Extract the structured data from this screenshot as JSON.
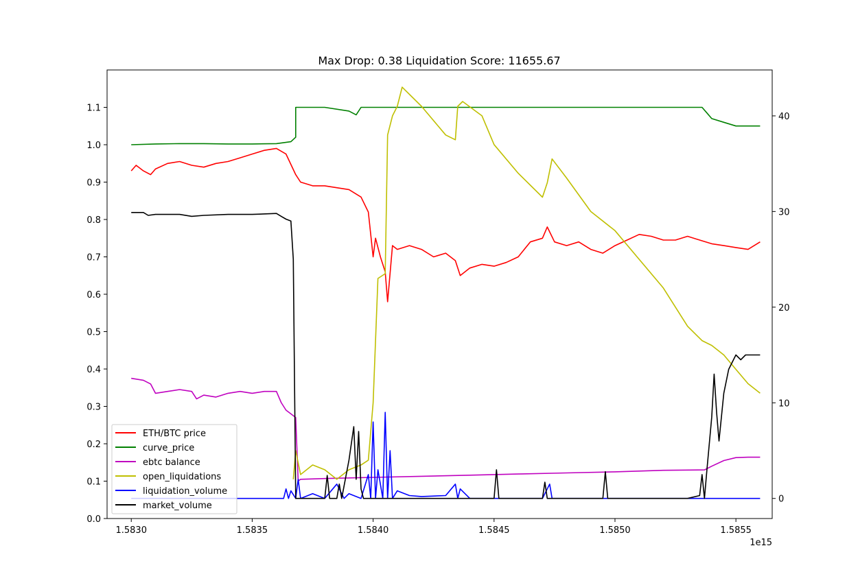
{
  "chart_data": {
    "type": "line",
    "title": "Max Drop: 0.38 Liquidation Score: 11655.67",
    "xlabel": "",
    "ylabel_left": "",
    "ylabel_right": "",
    "x_offset_label": "1e15",
    "xlim": [
      1.5829,
      1.58565
    ],
    "ylim_left": [
      0.0,
      1.2
    ],
    "ylim_right": [
      -2.1,
      44.8
    ],
    "x_ticks": [
      1.583,
      1.5835,
      1.584,
      1.5845,
      1.585,
      1.5855
    ],
    "x_tick_labels": [
      "1.5830",
      "1.5835",
      "1.5840",
      "1.5845",
      "1.5850",
      "1.5855"
    ],
    "y_left_ticks": [
      0.0,
      0.1,
      0.2,
      0.3,
      0.4,
      0.5,
      0.6,
      0.7,
      0.8,
      0.9,
      1.0,
      1.1
    ],
    "y_left_tick_labels": [
      "0.0",
      "0.1",
      "0.2",
      "0.3",
      "0.4",
      "0.5",
      "0.6",
      "0.7",
      "0.8",
      "0.9",
      "1.0",
      "1.1"
    ],
    "y_right_ticks": [
      0,
      10,
      20,
      30,
      40
    ],
    "y_right_tick_labels": [
      "0",
      "10",
      "20",
      "30",
      "40"
    ],
    "grid": false,
    "legend_placement": "lower-left",
    "series": [
      {
        "name": "ETH/BTC price",
        "color": "#ff0000",
        "axis": "left",
        "x": [
          1.583,
          1.58302,
          1.58305,
          1.58308,
          1.5831,
          1.58315,
          1.5832,
          1.58325,
          1.5833,
          1.58335,
          1.5834,
          1.58345,
          1.5835,
          1.58355,
          1.5836,
          1.58364,
          1.58368,
          1.5837,
          1.58375,
          1.5838,
          1.58385,
          1.5839,
          1.58395,
          1.58398,
          1.584,
          1.58401,
          1.58403,
          1.58405,
          1.58406,
          1.58408,
          1.5841,
          1.58415,
          1.5842,
          1.58425,
          1.5843,
          1.58434,
          1.58436,
          1.5844,
          1.58445,
          1.5845,
          1.58455,
          1.5846,
          1.58465,
          1.5847,
          1.58472,
          1.58475,
          1.5848,
          1.58485,
          1.5849,
          1.58495,
          1.585,
          1.58505,
          1.5851,
          1.58515,
          1.5852,
          1.58525,
          1.5853,
          1.58535,
          1.5854,
          1.58545,
          1.5855,
          1.58555,
          1.5856
        ],
        "y": [
          0.93,
          0.945,
          0.93,
          0.92,
          0.935,
          0.95,
          0.955,
          0.945,
          0.94,
          0.95,
          0.955,
          0.965,
          0.975,
          0.985,
          0.99,
          0.975,
          0.92,
          0.9,
          0.89,
          0.89,
          0.885,
          0.88,
          0.86,
          0.82,
          0.7,
          0.75,
          0.7,
          0.66,
          0.58,
          0.73,
          0.72,
          0.73,
          0.72,
          0.7,
          0.71,
          0.69,
          0.65,
          0.67,
          0.68,
          0.675,
          0.685,
          0.7,
          0.74,
          0.75,
          0.78,
          0.74,
          0.73,
          0.74,
          0.72,
          0.71,
          0.73,
          0.745,
          0.76,
          0.755,
          0.745,
          0.745,
          0.755,
          0.745,
          0.735,
          0.73,
          0.725,
          0.72,
          0.74
        ]
      },
      {
        "name": "curve_price",
        "color": "#008000",
        "axis": "left",
        "x": [
          1.583,
          1.5831,
          1.5832,
          1.5833,
          1.5834,
          1.5835,
          1.5836,
          1.58366,
          1.58368,
          1.58368,
          1.5837,
          1.5838,
          1.5839,
          1.58393,
          1.58395,
          1.584,
          1.5841,
          1.5842,
          1.5843,
          1.5844,
          1.5845,
          1.5846,
          1.5847,
          1.5848,
          1.5849,
          1.585,
          1.5851,
          1.5852,
          1.5853,
          1.58536,
          1.58538,
          1.5854,
          1.58545,
          1.5855,
          1.58555,
          1.5856
        ],
        "y": [
          1.0,
          1.002,
          1.003,
          1.003,
          1.002,
          1.002,
          1.003,
          1.008,
          1.02,
          1.1,
          1.1,
          1.1,
          1.09,
          1.08,
          1.1,
          1.1,
          1.1,
          1.1,
          1.1,
          1.1,
          1.1,
          1.1,
          1.1,
          1.1,
          1.1,
          1.1,
          1.1,
          1.1,
          1.1,
          1.1,
          1.085,
          1.07,
          1.06,
          1.05,
          1.05,
          1.05
        ]
      },
      {
        "name": "ebtc balance",
        "color": "#bf00bf",
        "axis": "left",
        "x": [
          1.583,
          1.58305,
          1.58308,
          1.5831,
          1.58315,
          1.5832,
          1.58325,
          1.58327,
          1.5833,
          1.58335,
          1.5834,
          1.58345,
          1.5835,
          1.58355,
          1.5836,
          1.58362,
          1.58364,
          1.58366,
          1.58368,
          1.58369,
          1.5837,
          1.5838,
          1.584,
          1.5842,
          1.5844,
          1.5846,
          1.5848,
          1.585,
          1.5852,
          1.58537,
          1.5854,
          1.58545,
          1.5855,
          1.58555,
          1.5856
        ],
        "y": [
          0.375,
          0.37,
          0.36,
          0.335,
          0.34,
          0.345,
          0.34,
          0.32,
          0.33,
          0.325,
          0.335,
          0.34,
          0.335,
          0.34,
          0.34,
          0.31,
          0.29,
          0.28,
          0.27,
          0.1,
          0.105,
          0.107,
          0.11,
          0.113,
          0.116,
          0.119,
          0.122,
          0.125,
          0.129,
          0.13,
          0.14,
          0.155,
          0.163,
          0.164,
          0.164
        ]
      },
      {
        "name": "open_liquidations",
        "color": "#bfbf00",
        "axis": "right",
        "x": [
          1.58367,
          1.58368,
          1.5837,
          1.58375,
          1.5838,
          1.58385,
          1.5839,
          1.58395,
          1.58398,
          1.584,
          1.58402,
          1.58405,
          1.58406,
          1.58408,
          1.5841,
          1.58412,
          1.5842,
          1.5843,
          1.58434,
          1.58435,
          1.58437,
          1.58445,
          1.5845,
          1.5846,
          1.5847,
          1.58472,
          1.58474,
          1.5848,
          1.5849,
          1.585,
          1.5851,
          1.5852,
          1.5853,
          1.58536,
          1.5854,
          1.58545,
          1.5855,
          1.58555,
          1.5856
        ],
        "y": [
          2.0,
          5.0,
          2.5,
          3.5,
          3.0,
          2.0,
          3.0,
          3.5,
          4.0,
          10.0,
          23.0,
          23.5,
          38.0,
          40.0,
          41.0,
          43.0,
          41.0,
          38.0,
          37.5,
          41.0,
          41.5,
          40.0,
          37.0,
          34.0,
          31.5,
          33.0,
          35.5,
          33.5,
          30.0,
          28.0,
          25.0,
          22.0,
          18.0,
          16.5,
          16.0,
          15.0,
          13.5,
          12.0,
          11.0
        ]
      },
      {
        "name": "liquidation_volume",
        "color": "#0000ff",
        "axis": "right",
        "x": [
          1.583,
          1.5833,
          1.58363,
          1.58364,
          1.58365,
          1.58366,
          1.58368,
          1.58369,
          1.5837,
          1.58375,
          1.5838,
          1.58385,
          1.58388,
          1.5839,
          1.58395,
          1.58398,
          1.58399,
          1.584,
          1.58401,
          1.58402,
          1.58404,
          1.58405,
          1.58406,
          1.58407,
          1.58408,
          1.5841,
          1.58415,
          1.5842,
          1.5843,
          1.58434,
          1.58435,
          1.58436,
          1.5844,
          1.5846,
          1.5847,
          1.58473,
          1.58474,
          1.58475,
          1.5848,
          1.585,
          1.5852,
          1.5854,
          1.5856
        ],
        "y": [
          0,
          0,
          0,
          1.0,
          0,
          0.8,
          0,
          2.0,
          0,
          0.5,
          0,
          1.5,
          0,
          0.5,
          0,
          2.5,
          0,
          8.0,
          0,
          3.0,
          0,
          9.0,
          0,
          5.0,
          0,
          0.8,
          0.3,
          0.2,
          0.3,
          1.5,
          0,
          1.0,
          0,
          0,
          0,
          1.5,
          0,
          0,
          0,
          0,
          0,
          0,
          0
        ]
      },
      {
        "name": "market_volume",
        "color": "#000000",
        "axis": "right",
        "x": [
          1.583,
          1.58305,
          1.58307,
          1.5831,
          1.5832,
          1.58325,
          1.5833,
          1.5834,
          1.5835,
          1.5836,
          1.58362,
          1.58364,
          1.58366,
          1.58367,
          1.58368,
          1.58369,
          1.5837,
          1.5838,
          1.58381,
          1.58382,
          1.58385,
          1.58386,
          1.58387,
          1.5839,
          1.58392,
          1.58393,
          1.58394,
          1.58395,
          1.58396,
          1.584,
          1.5845,
          1.58451,
          1.58452,
          1.5847,
          1.58471,
          1.58472,
          1.58495,
          1.58496,
          1.58497,
          1.5853,
          1.58535,
          1.58536,
          1.58537,
          1.58538,
          1.5854,
          1.58541,
          1.58542,
          1.58543,
          1.58545,
          1.58547,
          1.5855,
          1.58552,
          1.58554,
          1.58555,
          1.5856
        ],
        "y": [
          29.9,
          29.9,
          29.6,
          29.7,
          29.7,
          29.5,
          29.6,
          29.7,
          29.7,
          29.8,
          29.5,
          29.2,
          29.0,
          25.0,
          0,
          0,
          0,
          0,
          2.4,
          0,
          0,
          1.5,
          0,
          4.0,
          7.5,
          2.0,
          7.0,
          1.0,
          0,
          0,
          0,
          3.0,
          0,
          0,
          1.7,
          0,
          0,
          2.8,
          0,
          0,
          0.3,
          2.5,
          0,
          3.0,
          8.5,
          13.0,
          9.0,
          6.0,
          11.0,
          13.5,
          15.0,
          14.5,
          15.0,
          15.0,
          15.0
        ]
      }
    ]
  }
}
